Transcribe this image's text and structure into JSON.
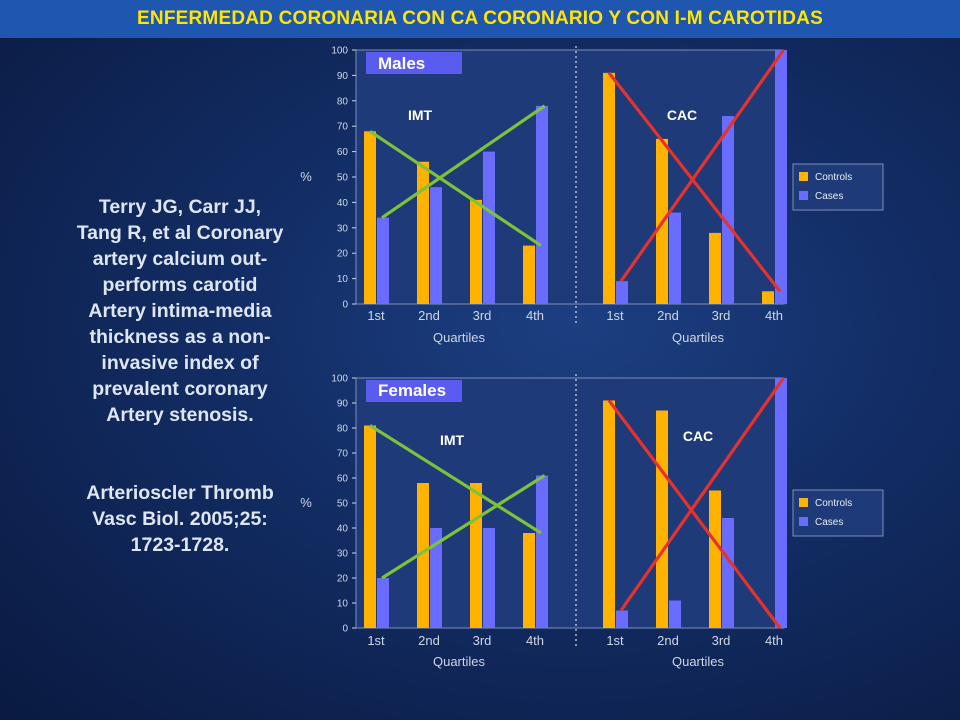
{
  "title": "ENFERMEDAD CORONARIA  CON  CA  CORONARIO Y CON  I-M CAROTIDAS",
  "citation": {
    "text": "Terry JG, Carr JJ,\nTang R, et al Coronary\nartery calcium out-\nperforms carotid\nArtery intima-media\nthickness as a non-\ninvasive index of\nprevalent coronary\nArtery stenosis.",
    "journal": "Arterioscler Thromb\nVasc Biol. 2005;25:\n1723-1728."
  },
  "colors": {
    "controls": "#ffb300",
    "cases": "#6a6cff",
    "green_line": "#7cc23a",
    "red_line": "#e6322d",
    "panel_title_bg": "#5a5cf0",
    "plot_bg": "#1e3a78"
  },
  "chart_data": [
    {
      "type": "bar",
      "title": "Males",
      "ylabel": "%",
      "xlabel": "Quartiles",
      "ylim": [
        0,
        100
      ],
      "yticks": [
        "0",
        "10",
        "20",
        "30",
        "40",
        "50",
        "60",
        "70",
        "80",
        "90",
        "100"
      ],
      "legend": [
        "Controls",
        "Cases"
      ],
      "legend_position": "right",
      "groups": [
        {
          "label": "IMT",
          "categories": [
            "1st",
            "2nd",
            "3rd",
            "4th"
          ],
          "series": [
            {
              "name": "Controls",
              "values": [
                68,
                56,
                41,
                23
              ]
            },
            {
              "name": "Cases",
              "values": [
                34,
                46,
                60,
                78
              ]
            }
          ]
        },
        {
          "label": "CAC",
          "categories": [
            "1st",
            "2nd",
            "3rd",
            "4th"
          ],
          "series": [
            {
              "name": "Controls",
              "values": [
                91,
                65,
                28,
                5
              ]
            },
            {
              "name": "Cases",
              "values": [
                9,
                36,
                74,
                100
              ]
            }
          ]
        }
      ]
    },
    {
      "type": "bar",
      "title": "Females",
      "ylabel": "%",
      "xlabel": "Quartiles",
      "ylim": [
        0,
        100
      ],
      "yticks": [
        "0",
        "10",
        "20",
        "30",
        "40",
        "50",
        "60",
        "70",
        "80",
        "90",
        "100"
      ],
      "legend": [
        "Controls",
        "Cases"
      ],
      "legend_position": "right",
      "groups": [
        {
          "label": "IMT",
          "categories": [
            "1st",
            "2nd",
            "3rd",
            "4th"
          ],
          "series": [
            {
              "name": "Controls",
              "values": [
                81,
                58,
                58,
                38
              ]
            },
            {
              "name": "Cases",
              "values": [
                20,
                40,
                40,
                61
              ]
            }
          ]
        },
        {
          "label": "CAC",
          "categories": [
            "1st",
            "2nd",
            "3rd",
            "4th"
          ],
          "series": [
            {
              "name": "Controls",
              "values": [
                91,
                87,
                55,
                0
              ]
            },
            {
              "name": "Cases",
              "values": [
                7,
                11,
                44,
                100
              ]
            }
          ]
        }
      ]
    }
  ]
}
